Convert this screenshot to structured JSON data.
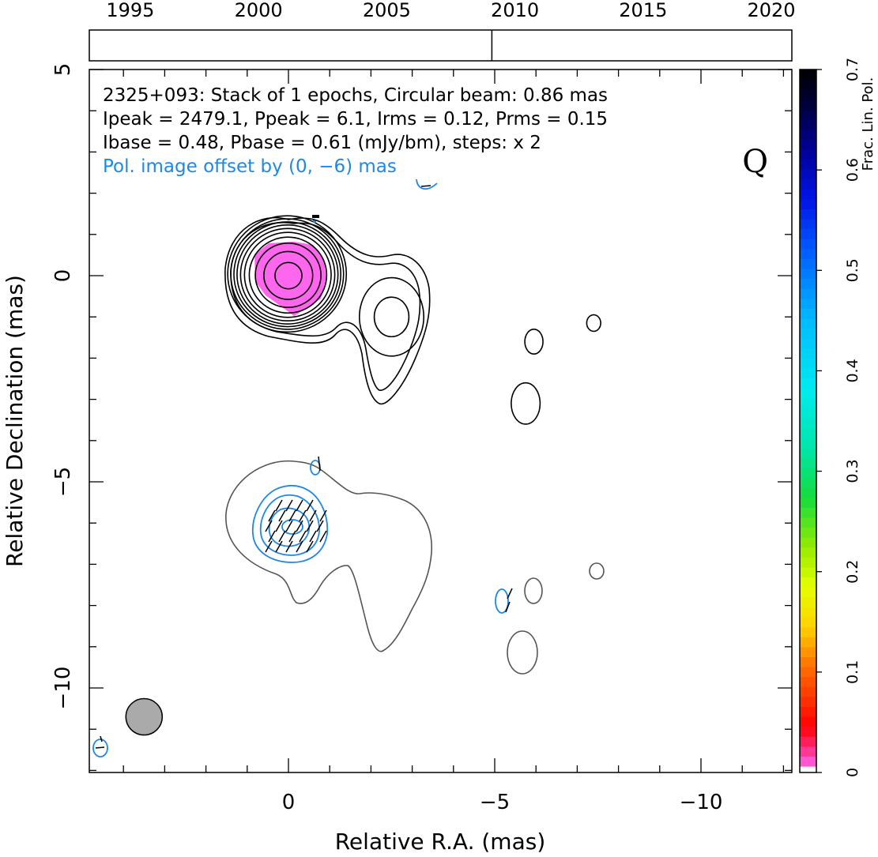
{
  "chart_data": {
    "type": "contour",
    "source": "2325+093",
    "info_lines": [
      "2325+093: Stack of 1 epochs, Circular beam: 0.86 mas",
      "Ipeak = 2479.1, Ppeak = 6.1, Irms = 0.12, Prms = 0.15",
      "Ibase = 0.48, Pbase = 0.61 (mJy/bm), steps: x 2"
    ],
    "pol_offset_note": "Pol. image offset by (0, −6) mas",
    "stokes_label": "Q",
    "xlabel": "Relative R.A. (mas)",
    "ylabel": "Relative Declination (mas)",
    "xlim": [
      4.8,
      -12.2
    ],
    "ylim": [
      -12.0,
      5.0
    ],
    "x_ticks": [
      0,
      -5,
      -10
    ],
    "x_tick_labels": [
      "0",
      "−5",
      "−10"
    ],
    "y_ticks": [
      5,
      0,
      -5,
      -10
    ],
    "y_tick_labels": [
      "5",
      "0",
      "−5",
      "−10"
    ],
    "beam": {
      "x": 3.5,
      "y": -10.7,
      "diameter_mas": 0.86
    },
    "epoch_axis": {
      "range": [
        1993.4,
        2020.8
      ],
      "tick_years": [
        1995,
        2000,
        2005,
        2010,
        2015,
        2020
      ],
      "tick_labels": [
        "1995",
        "2000",
        "2005",
        "2010",
        "2015",
        "2020"
      ],
      "epochs": [
        2009.1
      ]
    },
    "colorbar": {
      "label": "Frac. Lin. Pol.",
      "range": [
        0,
        0.7
      ],
      "ticks": [
        0,
        0.1,
        0.2,
        0.3,
        0.4,
        0.5,
        0.6,
        0.7
      ],
      "tick_labels": [
        "0",
        "0.1",
        "0.2",
        "0.3",
        "0.4",
        "0.5",
        "0.6",
        "0.7"
      ]
    },
    "total_intensity": {
      "core": {
        "x": 0.0,
        "y": 0.0
      },
      "core_contour_radii_mas": [
        0.32,
        0.58,
        0.78,
        0.92,
        1.03,
        1.12,
        1.2,
        1.27,
        1.34,
        1.41
      ],
      "jet_component": {
        "x": -2.5,
        "y": -1.0
      },
      "jet_contour_radii_mas": [
        [
          0.42,
          0.48
        ],
        [
          0.78,
          0.95
        ]
      ],
      "island_components": [
        {
          "x": -5.95,
          "y": -1.6,
          "rx": 0.22,
          "ry": 0.3
        },
        {
          "x": -7.4,
          "y": -1.15,
          "rx": 0.17,
          "ry": 0.2
        },
        {
          "x": -5.75,
          "y": -3.1,
          "rx": 0.35,
          "ry": 0.5
        }
      ]
    },
    "fractional_polarization_peak": 0.01,
    "colors": {
      "total_intensity_contour": "#000000",
      "offset_intensity_contour": "#555555",
      "polarized_contour": "#1e88e5",
      "evpa": "#000000",
      "frac_pol_fill": "#ff66ee",
      "beam_fill": "#aaaaaa"
    }
  }
}
